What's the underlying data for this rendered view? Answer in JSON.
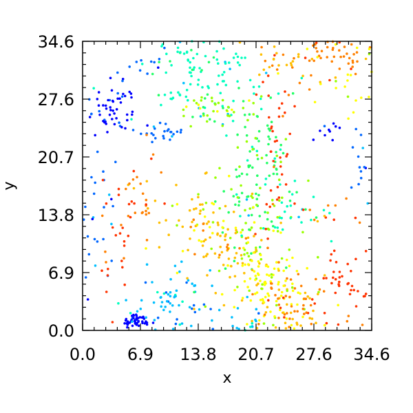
{
  "chart_data": {
    "type": "scatter",
    "title": "",
    "xlabel": "x",
    "ylabel": "y",
    "xlim": [
      0,
      34.6
    ],
    "ylim": [
      0,
      34.6
    ],
    "xticks": [
      "0.0",
      "6.9",
      "13.8",
      "20.7",
      "27.6",
      "34.6"
    ],
    "yticks": [
      "0.0",
      "6.9",
      "13.8",
      "20.7",
      "27.6",
      "34.6"
    ],
    "grid": false,
    "legend": "none",
    "colormap": "rainbow",
    "palette": [
      "#0000ff",
      "#0066ff",
      "#00bfff",
      "#00ffbf",
      "#22ff66",
      "#99ff00",
      "#ffff00",
      "#ffbf00",
      "#ff8000",
      "#ff3300"
    ],
    "clusters": [
      {
        "x": 6.5,
        "y": 1.2,
        "sx": 0.7,
        "sy": 0.4,
        "n": 45,
        "c": 0
      },
      {
        "x": 3.6,
        "y": 26.5,
        "sx": 1.4,
        "sy": 1.5,
        "n": 55,
        "c": 0
      },
      {
        "x": 8.5,
        "y": 32.0,
        "sx": 1.5,
        "sy": 1.5,
        "n": 10,
        "c": 1
      },
      {
        "x": 9.5,
        "y": 23.8,
        "sx": 1.6,
        "sy": 0.6,
        "n": 25,
        "c": 1
      },
      {
        "x": 1.5,
        "y": 14.0,
        "sx": 1.5,
        "sy": 5.0,
        "n": 30,
        "c": 1
      },
      {
        "x": 29.5,
        "y": 24.2,
        "sx": 1.2,
        "sy": 0.6,
        "n": 10,
        "c": 0
      },
      {
        "x": 33.5,
        "y": 18.5,
        "sx": 0.6,
        "sy": 2.0,
        "n": 14,
        "c": 1
      },
      {
        "x": 11.0,
        "y": 3.0,
        "sx": 2.5,
        "sy": 2.0,
        "n": 70,
        "c": 2
      },
      {
        "x": 14.0,
        "y": 30.5,
        "sx": 3.5,
        "sy": 2.5,
        "n": 110,
        "c": 3
      },
      {
        "x": 15.5,
        "y": 26.5,
        "sx": 2.5,
        "sy": 1.2,
        "n": 40,
        "c": 5
      },
      {
        "x": 21.0,
        "y": 20.0,
        "sx": 2.0,
        "sy": 4.0,
        "n": 90,
        "c": 4
      },
      {
        "x": 19.5,
        "y": 11.0,
        "sx": 3.0,
        "sy": 3.5,
        "n": 90,
        "c": 5
      },
      {
        "x": 17.5,
        "y": 9.0,
        "sx": 3.0,
        "sy": 3.0,
        "n": 70,
        "c": 7
      },
      {
        "x": 22.5,
        "y": 5.0,
        "sx": 2.5,
        "sy": 2.5,
        "n": 90,
        "c": 6
      },
      {
        "x": 25.5,
        "y": 14.0,
        "sx": 3.0,
        "sy": 2.0,
        "n": 30,
        "c": 3
      },
      {
        "x": 25.0,
        "y": 4.0,
        "sx": 2.5,
        "sy": 2.0,
        "n": 50,
        "c": 8
      },
      {
        "x": 32.0,
        "y": 4.5,
        "sx": 2.0,
        "sy": 2.5,
        "n": 45,
        "c": 9
      },
      {
        "x": 29.0,
        "y": 33.0,
        "sx": 3.5,
        "sy": 1.5,
        "n": 60,
        "c": 8
      },
      {
        "x": 32.5,
        "y": 30.5,
        "sx": 2.5,
        "sy": 2.5,
        "n": 30,
        "c": 6
      },
      {
        "x": 23.5,
        "y": 33.0,
        "sx": 2.0,
        "sy": 1.5,
        "n": 25,
        "c": 7
      },
      {
        "x": 23.0,
        "y": 22.0,
        "sx": 1.0,
        "sy": 6.0,
        "n": 40,
        "c": 9
      },
      {
        "x": 7.0,
        "y": 15.5,
        "sx": 1.2,
        "sy": 3.0,
        "n": 30,
        "c": 8
      },
      {
        "x": 4.5,
        "y": 14.5,
        "sx": 0.8,
        "sy": 2.5,
        "n": 12,
        "c": 9
      },
      {
        "x": 3.5,
        "y": 7.0,
        "sx": 1.5,
        "sy": 3.5,
        "n": 14,
        "c": 9
      },
      {
        "x": 25.5,
        "y": 1.0,
        "sx": 3.0,
        "sy": 0.8,
        "n": 25,
        "c": 7
      },
      {
        "x": 19.0,
        "y": 1.5,
        "sx": 2.0,
        "sy": 1.0,
        "n": 20,
        "c": 2
      },
      {
        "x": 27.5,
        "y": 14.0,
        "sx": 2.5,
        "sy": 1.5,
        "n": 12,
        "c": 8
      },
      {
        "x": 13.5,
        "y": 13.5,
        "sx": 2.0,
        "sy": 2.0,
        "n": 40,
        "c": 7
      }
    ]
  }
}
